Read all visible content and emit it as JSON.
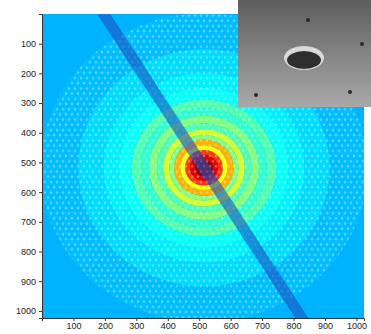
{
  "chart_data": {
    "type": "heatmap",
    "xlim": [
      0,
      1024
    ],
    "ylim": [
      1024,
      0
    ],
    "xticks": [
      100,
      200,
      300,
      400,
      500,
      600,
      700,
      800,
      900,
      1000
    ],
    "yticks": [
      100,
      200,
      300,
      400,
      500,
      600,
      700,
      800,
      900,
      1000
    ],
    "center": [
      515,
      518
    ],
    "radii": [
      0,
      30,
      45,
      60,
      75,
      95,
      110,
      130,
      150,
      175,
      200,
      230,
      270,
      320,
      400,
      520
    ],
    "values": [
      0.97,
      0.9,
      0.82,
      0.62,
      0.7,
      0.5,
      0.58,
      0.45,
      0.5,
      0.42,
      0.45,
      0.38,
      0.36,
      0.34,
      0.31
    ],
    "background": 0.3
  }
}
